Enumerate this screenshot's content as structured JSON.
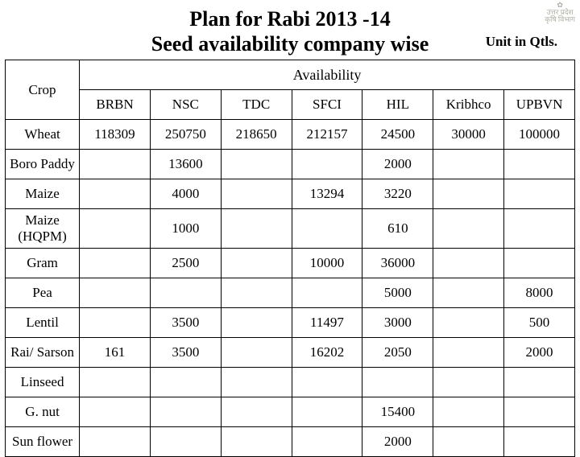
{
  "title_line1": "Plan for Rabi 2013 -14",
  "title_line2": "Seed availability company wise",
  "unit_label": "Unit in Qtls.",
  "emblem": {
    "line1": "✿",
    "line2": "उत्तर प्रदेश",
    "line3": "कृषि विभाग"
  },
  "headers": {
    "crop": "Crop",
    "availability": "Availability",
    "cols": [
      "BRBN",
      "NSC",
      "TDC",
      "SFCI",
      "HIL",
      "Kribhco",
      "UPBVN"
    ]
  },
  "rows": [
    {
      "crop": "Wheat",
      "v": [
        "118309",
        "250750",
        "218650",
        "212157",
        "24500",
        "30000",
        "100000"
      ]
    },
    {
      "crop": "Boro Paddy",
      "v": [
        "",
        "13600",
        "",
        "",
        "2000",
        "",
        ""
      ]
    },
    {
      "crop": "Maize",
      "v": [
        "",
        "4000",
        "",
        "13294",
        "3220",
        "",
        ""
      ]
    },
    {
      "crop": "Maize (HQPM)",
      "v": [
        "",
        "1000",
        "",
        "",
        "610",
        "",
        ""
      ]
    },
    {
      "crop": "Gram",
      "v": [
        "",
        "2500",
        "",
        "10000",
        "36000",
        "",
        ""
      ]
    },
    {
      "crop": "Pea",
      "v": [
        "",
        "",
        "",
        "",
        "5000",
        "",
        "8000"
      ]
    },
    {
      "crop": "Lentil",
      "v": [
        "",
        "3500",
        "",
        "11497",
        "3000",
        "",
        "500"
      ]
    },
    {
      "crop": "Rai/ Sarson",
      "v": [
        "161",
        "3500",
        "",
        "16202",
        "2050",
        "",
        "2000"
      ]
    },
    {
      "crop": "Linseed",
      "v": [
        "",
        "",
        "",
        "",
        "",
        "",
        ""
      ]
    },
    {
      "crop": "G. nut",
      "v": [
        "",
        "",
        "",
        "",
        "15400",
        "",
        ""
      ]
    },
    {
      "crop": "Sun flower",
      "v": [
        "",
        "",
        "",
        "",
        "2000",
        "",
        ""
      ]
    }
  ]
}
